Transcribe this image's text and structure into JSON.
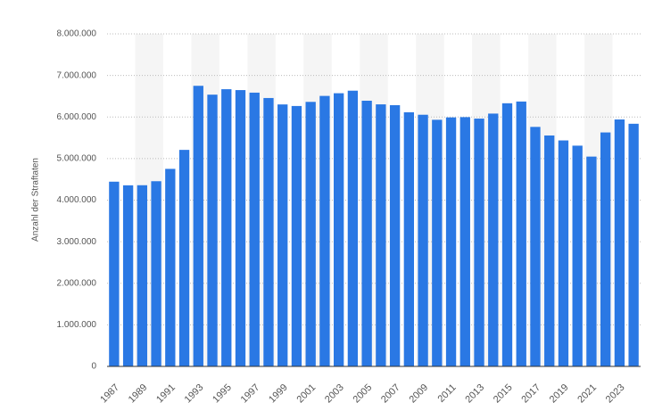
{
  "chart_data": {
    "type": "bar",
    "y_label": "Anzahl der Straftaten",
    "categories": [
      "1987",
      null,
      "1989",
      null,
      "1991",
      null,
      "1993",
      null,
      "1995",
      null,
      "1997",
      null,
      "1999",
      null,
      "2001",
      null,
      "2003",
      null,
      "2005",
      null,
      "2007",
      null,
      "2009",
      null,
      "2011",
      null,
      "2013",
      null,
      "2015",
      null,
      "2017",
      null,
      "2019",
      null,
      "2021",
      null,
      "2023",
      null
    ],
    "values": [
      4444108,
      4356726,
      4358573,
      4455333,
      4752175,
      5209060,
      6750613,
      6537748,
      6668717,
      6647598,
      6586165,
      6456996,
      6302316,
      6264723,
      6363865,
      6507394,
      6572135,
      6633156,
      6391715,
      6304223,
      6284661,
      6114128,
      6054330,
      5933278,
      5990679,
      5997040,
      5961662,
      6082064,
      6330649,
      6372526,
      5761984,
      5555520,
      5436401,
      5310621,
      5047860,
      5628584,
      5940667,
      5837445
    ],
    "color": "#2a78e4",
    "ylim": [
      0,
      8000000
    ],
    "yticks": [
      0,
      {
        "value": 1000000,
        "label": "1.000.000"
      },
      {
        "value": 2000000,
        "label": "2.000.000"
      },
      {
        "value": 3000000,
        "label": "3.000.000"
      },
      {
        "value": 4000000,
        "label": "4.000.000"
      },
      {
        "value": 5000000,
        "label": "5.000.000"
      },
      {
        "value": 6000000,
        "label": "6.000.000"
      },
      {
        "value": 7000000,
        "label": "7.000.000"
      },
      {
        "value": 8000000,
        "label": "8.000.000"
      }
    ],
    "grid": true
  }
}
